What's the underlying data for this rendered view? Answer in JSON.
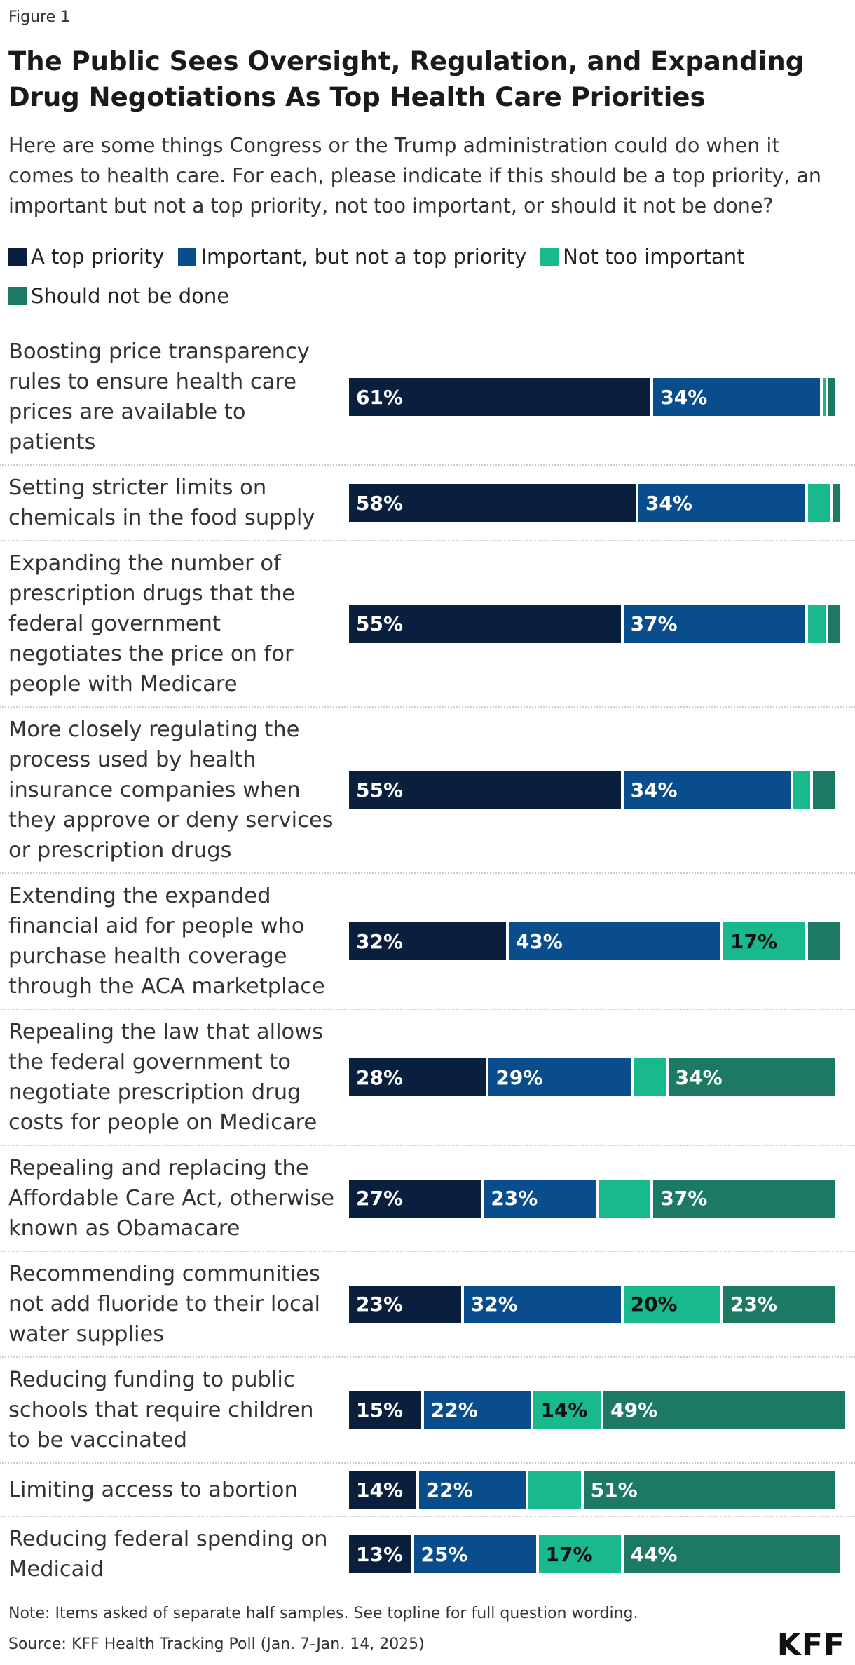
{
  "figure_label": "Figure 1",
  "chart_data": {
    "type": "stacked-bar-horizontal",
    "title": "The Public Sees Oversight, Regulation, and Expanding Drug Negotiations As Top Health Care Priorities",
    "subtitle": "Here are some things Congress or the Trump administration could do when it comes to health care. For each, please indicate if this should be a top priority, an important but not a top priority, not too important, or should it not be done?",
    "xlim": [
      0,
      100
    ],
    "categories": [
      "Boosting price transparency rules to ensure health care prices are available to patients",
      "Setting stricter limits on chemicals in the food supply",
      "Expanding the number of prescription drugs that the federal government negotiates the price on for people with Medicare",
      "More closely regulating the process used by health insurance companies when they approve or deny services or prescription drugs",
      "Extending the expanded financial aid for people who purchase health coverage through the ACA marketplace",
      "Repealing the law that allows the federal government to negotiate prescription drug costs for people on Medicare",
      "Repealing and replacing the Affordable Care Act, otherwise known as Obamacare",
      "Recommending communities not add fluoride to their local water supplies",
      "Reducing funding to public schools that require children to be vaccinated",
      "Limiting access to abortion",
      "Reducing federal spending on Medicaid"
    ],
    "series": [
      {
        "name": "A top priority",
        "color": "#0a1f3d",
        "values": [
          61,
          58,
          55,
          55,
          32,
          28,
          27,
          23,
          15,
          14,
          13
        ],
        "value_labels": [
          "61%",
          "58%",
          "55%",
          "55%",
          "32%",
          "28%",
          "27%",
          "23%",
          "15%",
          "14%",
          "13%"
        ]
      },
      {
        "name": "Important, but not a top priority",
        "color": "#0a4d8c",
        "values": [
          34,
          34,
          37,
          34,
          43,
          29,
          23,
          32,
          22,
          22,
          25
        ],
        "value_labels": [
          "34%",
          "34%",
          "37%",
          "34%",
          "43%",
          "29%",
          "23%",
          "32%",
          "22%",
          "22%",
          "25%"
        ]
      },
      {
        "name": "Not too important",
        "color": "#19b98e",
        "values": [
          1,
          5,
          4,
          4,
          17,
          7,
          11,
          20,
          14,
          11,
          17
        ],
        "value_labels": [
          null,
          null,
          null,
          null,
          "17%",
          null,
          null,
          "20%",
          "14%",
          null,
          "17%"
        ]
      },
      {
        "name": "Should not be done",
        "color": "#1c7a64",
        "values": [
          2,
          2,
          3,
          5,
          7,
          34,
          37,
          23,
          49,
          51,
          44
        ],
        "value_labels": [
          null,
          null,
          null,
          null,
          null,
          "34%",
          "37%",
          "23%",
          "49%",
          "51%",
          "44%"
        ]
      }
    ]
  },
  "note": "Note: Items asked of separate half samples. See topline for full question wording.",
  "source": "Source: KFF Health Tracking Poll (Jan. 7-Jan. 14, 2025)",
  "logo": "KFF"
}
